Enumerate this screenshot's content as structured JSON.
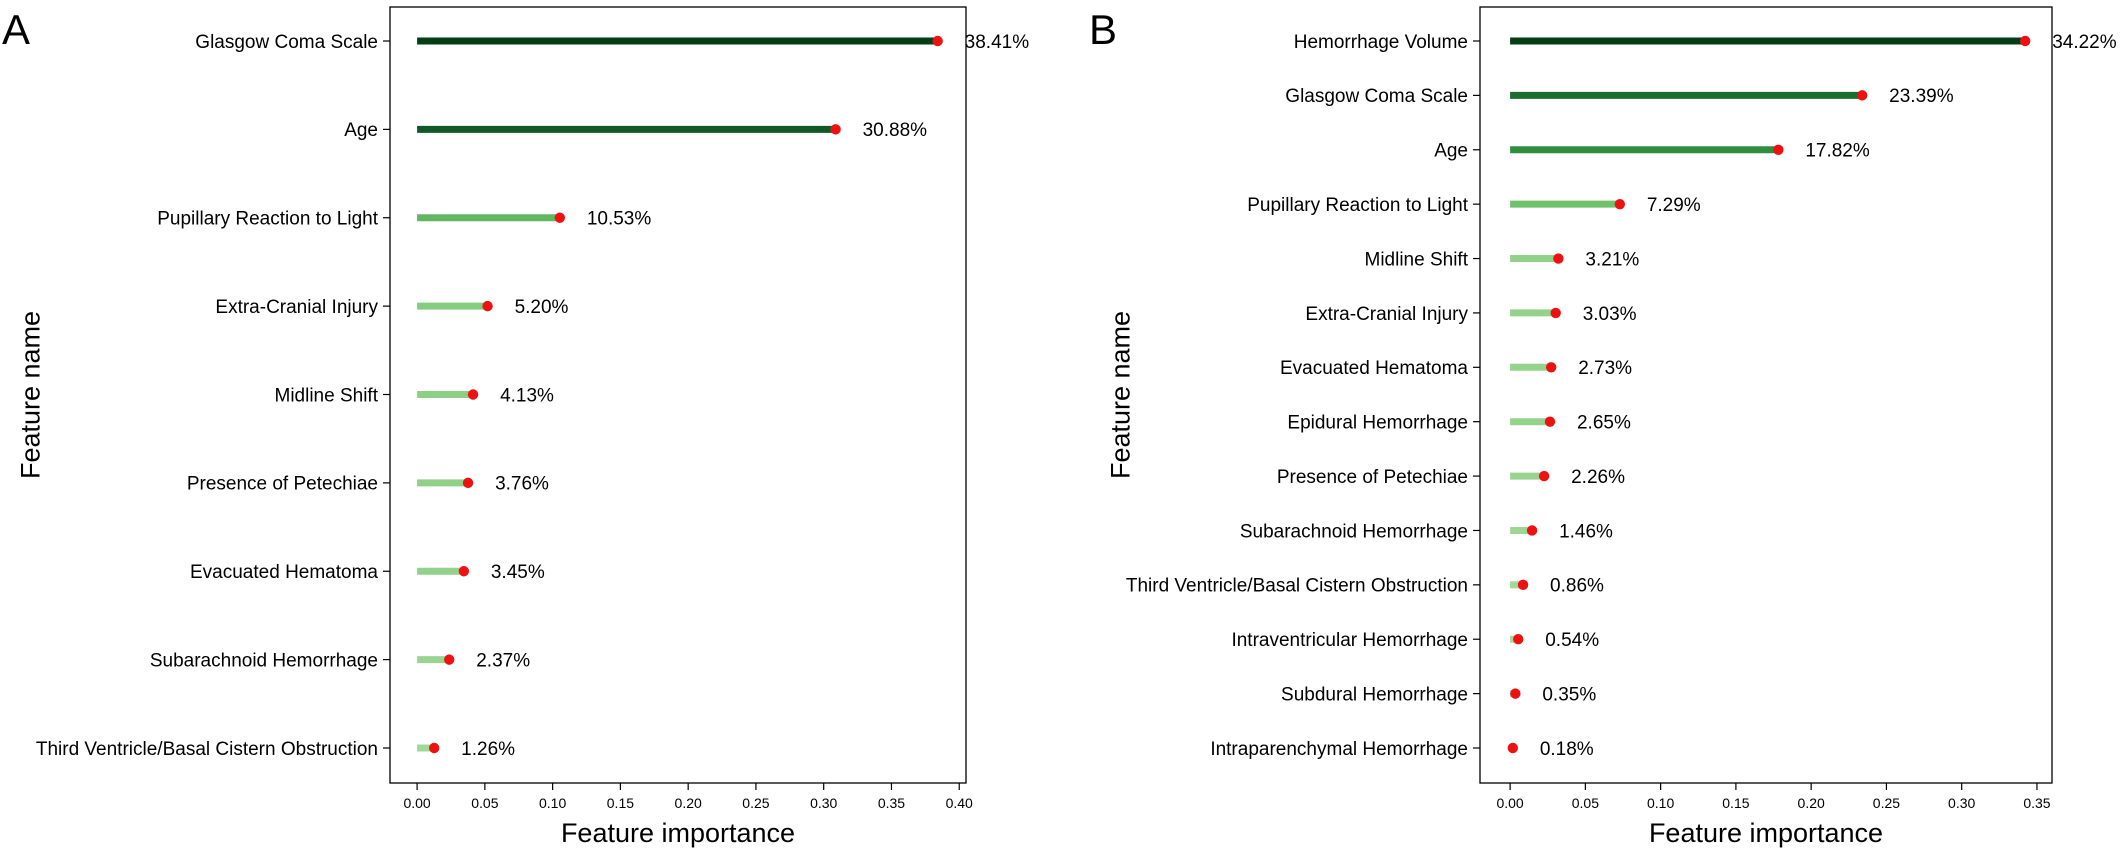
{
  "colors": {
    "marker": "#ee1111",
    "bar_scale": [
      "#a9dca0",
      "#8ccf83",
      "#6fc06a",
      "#52ad55",
      "#3c9a47",
      "#2b873b",
      "#1d7131",
      "#125c27",
      "#094a1d",
      "#043e17"
    ]
  },
  "chart_data": [
    {
      "type": "bar",
      "orientation": "horizontal",
      "style": "lollipop",
      "panel": "A",
      "title": "",
      "xlabel": "Feature importance",
      "ylabel": "Feature name",
      "xlim": [
        -0.02,
        0.405
      ],
      "xticks": [
        0.0,
        0.05,
        0.1,
        0.15,
        0.2,
        0.25,
        0.3,
        0.35,
        0.4
      ],
      "xtick_labels": [
        "0.00",
        "0.05",
        "0.10",
        "0.15",
        "0.20",
        "0.25",
        "0.30",
        "0.35",
        "0.40"
      ],
      "grid": false,
      "categories": [
        "Glasgow Coma Scale",
        "Age",
        "Pupillary Reaction to Light",
        "Extra-Cranial Injury",
        "Midline Shift",
        "Presence of Petechiae",
        "Evacuated Hematoma",
        "Subarachnoid Hemorrhage",
        "Third Ventricle/Basal Cistern Obstruction"
      ],
      "values": [
        0.3841,
        0.3088,
        0.1053,
        0.052,
        0.0413,
        0.0376,
        0.0345,
        0.0237,
        0.0126
      ],
      "data_labels": [
        "38.41%",
        "30.88%",
        "10.53%",
        "5.20%",
        "4.13%",
        "3.76%",
        "3.45%",
        "2.37%",
        "1.26%"
      ]
    },
    {
      "type": "bar",
      "orientation": "horizontal",
      "style": "lollipop",
      "panel": "B",
      "title": "",
      "xlabel": "Feature importance",
      "ylabel": "Feature name",
      "xlim": [
        -0.02,
        0.36
      ],
      "xticks": [
        0.0,
        0.05,
        0.1,
        0.15,
        0.2,
        0.25,
        0.3,
        0.35
      ],
      "xtick_labels": [
        "0.00",
        "0.05",
        "0.10",
        "0.15",
        "0.20",
        "0.25",
        "0.30",
        "0.35"
      ],
      "grid": false,
      "categories": [
        "Hemorrhage Volume",
        "Glasgow Coma Scale",
        "Age",
        "Pupillary Reaction to Light",
        "Midline Shift",
        "Extra-Cranial Injury",
        "Evacuated Hematoma",
        "Epidural Hemorrhage",
        "Presence of Petechiae",
        "Subarachnoid Hemorrhage",
        "Third Ventricle/Basal Cistern Obstruction",
        "Intraventricular Hemorrhage",
        "Subdural Hemorrhage",
        "Intraparenchymal Hemorrhage"
      ],
      "values": [
        0.3422,
        0.2339,
        0.1782,
        0.0729,
        0.0321,
        0.0303,
        0.0273,
        0.0265,
        0.0226,
        0.0146,
        0.0086,
        0.0054,
        0.0035,
        0.0018
      ],
      "data_labels": [
        "34.22%",
        "23.39%",
        "17.82%",
        "7.29%",
        "3.21%",
        "3.03%",
        "2.73%",
        "2.65%",
        "2.26%",
        "1.46%",
        "0.86%",
        "0.54%",
        "0.35%",
        "0.18%"
      ]
    }
  ]
}
